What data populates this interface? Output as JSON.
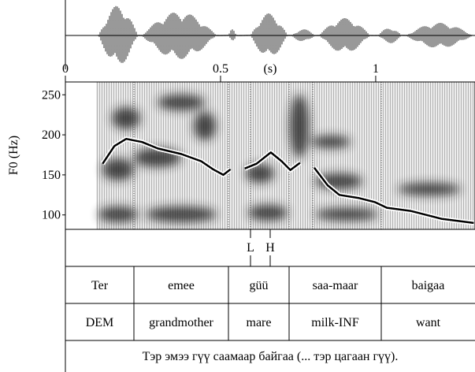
{
  "chart_data": {
    "type": "line",
    "ylabel": "F0 (Hz)",
    "xlabel": "(s)",
    "xlim": [
      0,
      1.32
    ],
    "xticks": [
      0,
      0.5,
      1
    ],
    "ylim": [
      82,
      266
    ],
    "yticks": [
      100,
      150,
      200,
      250
    ],
    "x": [
      0.12,
      0.158,
      0.196,
      0.247,
      0.298,
      0.374,
      0.438,
      0.476,
      0.509,
      0.532,
      0.555,
      0.578,
      0.616,
      0.662,
      0.697,
      0.725,
      0.756,
      0.78,
      0.802,
      0.845,
      0.883,
      0.947,
      0.997,
      1.036,
      1.112,
      1.214,
      1.316
    ],
    "series": [
      {
        "color": "#000000",
        "values": [
          164,
          186,
          195,
          191,
          183,
          176,
          167,
          157,
          150,
          157,
          null,
          158,
          164,
          178,
          167,
          156,
          165,
          null,
          159,
          137,
          125,
          121,
          116,
          109,
          105,
          95,
          90
        ]
      }
    ],
    "tones": [
      "L",
      "H"
    ],
    "words": [
      "Ter",
      "emee",
      "güü",
      "saa-maar",
      "baigaa"
    ],
    "gloss": [
      "DEM",
      "grandmother",
      "mare",
      "milk-INF",
      "want"
    ],
    "translation": "Тэр эмээ гүү саамаар байгаа (... тэр цагаан гүү)."
  }
}
